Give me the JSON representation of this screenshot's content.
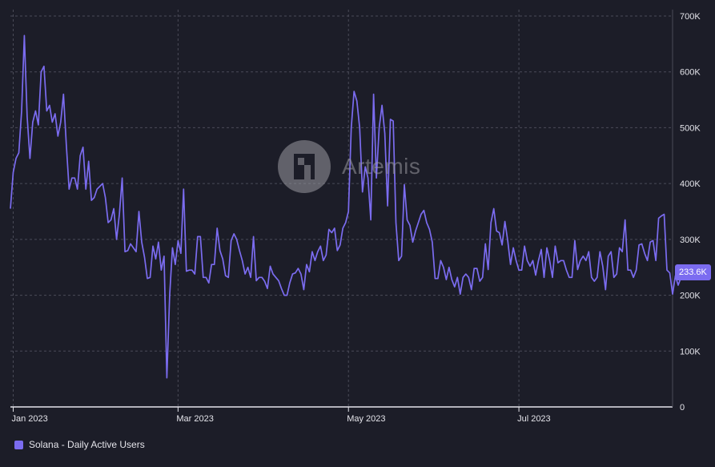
{
  "colors": {
    "background": "#1c1d28",
    "line": "#7b6cf0",
    "grid": "#4a4b58",
    "text": "#e4e4ea"
  },
  "watermark": {
    "text": "Artemis"
  },
  "legend": {
    "label": "Solana - Daily Active Users"
  },
  "last_value_label": "233.6K",
  "chart_data": {
    "type": "line",
    "title": "",
    "xlabel": "",
    "ylabel": "",
    "x_range": [
      "2022-12-31",
      "2023-08-25"
    ],
    "ylim": [
      0,
      700000
    ],
    "y_ticks": [
      {
        "value": 0,
        "label": "0"
      },
      {
        "value": 100000,
        "label": "100K"
      },
      {
        "value": 200000,
        "label": "200K"
      },
      {
        "value": 300000,
        "label": "300K"
      },
      {
        "value": 400000,
        "label": "400K"
      },
      {
        "value": 500000,
        "label": "500K"
      },
      {
        "value": 600000,
        "label": "600K"
      },
      {
        "value": 700000,
        "label": "700K"
      }
    ],
    "x_ticks": [
      {
        "date": "2023-01-01",
        "label": "Jan 2023"
      },
      {
        "date": "2023-03-01",
        "label": "Mar 2023"
      },
      {
        "date": "2023-05-01",
        "label": "May 2023"
      },
      {
        "date": "2023-07-01",
        "label": "Jul 2023"
      }
    ],
    "grid": true,
    "legend_position": "bottom-left",
    "series": [
      {
        "name": "Solana - Daily Active Users",
        "start_date": "2022-12-31",
        "step_days": 1,
        "values": [
          355000,
          420000,
          445000,
          455000,
          530000,
          665000,
          520000,
          445000,
          510000,
          530000,
          505000,
          600000,
          610000,
          530000,
          540000,
          510000,
          525000,
          485000,
          510000,
          560000,
          470000,
          390000,
          410000,
          410000,
          390000,
          450000,
          465000,
          390000,
          440000,
          370000,
          375000,
          390000,
          395000,
          400000,
          375000,
          330000,
          335000,
          355000,
          300000,
          345000,
          410000,
          278000,
          280000,
          292000,
          285000,
          278000,
          350000,
          295000,
          268000,
          230000,
          232000,
          288000,
          265000,
          295000,
          245000,
          270000,
          52000,
          200000,
          285000,
          255000,
          298000,
          275000,
          390000,
          243000,
          245000,
          245000,
          238000,
          305000,
          305000,
          232000,
          232000,
          222000,
          255000,
          255000,
          320000,
          280000,
          265000,
          235000,
          232000,
          298000,
          310000,
          300000,
          280000,
          262000,
          238000,
          250000,
          232000,
          305000,
          226000,
          232000,
          232000,
          225000,
          212000,
          252000,
          238000,
          232000,
          226000,
          212000,
          200000,
          200000,
          222000,
          238000,
          240000,
          248000,
          238000,
          210000,
          255000,
          242000,
          278000,
          262000,
          278000,
          288000,
          262000,
          272000,
          318000,
          312000,
          320000,
          280000,
          290000,
          320000,
          330000,
          350000,
          500000,
          565000,
          548000,
          500000,
          385000,
          430000,
          410000,
          335000,
          560000,
          410000,
          500000,
          540000,
          490000,
          360000,
          515000,
          512000,
          330000,
          262000,
          270000,
          398000,
          335000,
          325000,
          295000,
          315000,
          330000,
          345000,
          352000,
          330000,
          318000,
          295000,
          230000,
          230000,
          262000,
          250000,
          228000,
          250000,
          228000,
          215000,
          232000,
          202000,
          232000,
          238000,
          232000,
          210000,
          248000,
          248000,
          225000,
          232000,
          292000,
          246000,
          330000,
          355000,
          315000,
          312000,
          290000,
          332000,
          298000,
          255000,
          285000,
          262000,
          245000,
          245000,
          288000,
          262000,
          252000,
          262000,
          236000,
          262000,
          282000,
          232000,
          285000,
          262000,
          232000,
          288000,
          258000,
          262000,
          262000,
          245000,
          232000,
          232000,
          298000,
          246000,
          262000,
          270000,
          262000,
          278000,
          232000,
          225000,
          232000,
          278000,
          252000,
          210000,
          270000,
          278000,
          232000,
          238000,
          285000,
          278000,
          335000,
          245000,
          245000,
          232000,
          245000,
          290000,
          292000,
          275000,
          262000,
          295000,
          298000,
          262000,
          338000,
          342000,
          345000,
          245000,
          240000,
          202000,
          235000,
          218000,
          232000,
          234000,
          233600
        ]
      }
    ]
  }
}
